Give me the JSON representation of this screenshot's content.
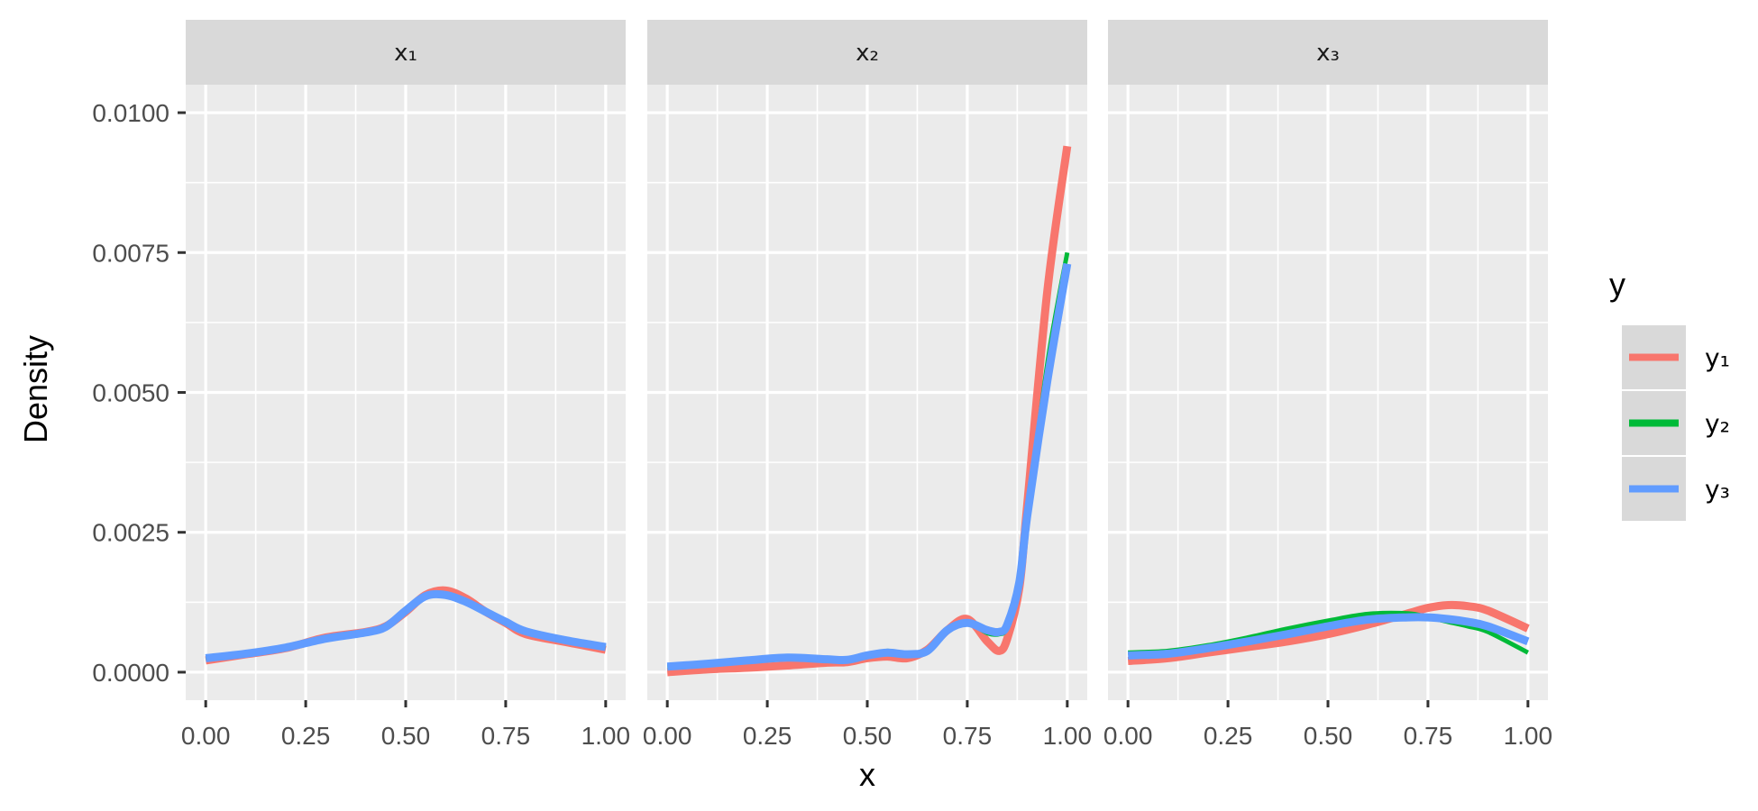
{
  "chart_data": {
    "type": "line",
    "xlabel": "x",
    "ylabel": "Density",
    "xlim": [
      0,
      1
    ],
    "ylim": [
      -0.0005,
      0.0105
    ],
    "x_ticks": [
      0,
      0.25,
      0.5,
      0.75,
      1
    ],
    "x_tick_labels": [
      "0.00",
      "0.25",
      "0.50",
      "0.75",
      "1.00"
    ],
    "y_ticks": [
      0,
      0.0025,
      0.005,
      0.0075,
      0.01
    ],
    "y_tick_labels": [
      "0.0000",
      "0.0025",
      "0.0050",
      "0.0075",
      "0.0100"
    ],
    "grid": true,
    "legend": {
      "title": "y",
      "position": "right"
    },
    "colors": {
      "y1": "#F8766D",
      "y2": "#00BA38",
      "y3": "#619CFF",
      "panel": "#EBEBEB",
      "strip": "#D9D9D9",
      "grid": "#FFFFFF"
    },
    "series_names": [
      "y₁",
      "y₂",
      "y₃"
    ],
    "panels": [
      {
        "strip": "x₁",
        "x": [
          0,
          0.1,
          0.2,
          0.3,
          0.4,
          0.45,
          0.5,
          0.55,
          0.6,
          0.65,
          0.7,
          0.75,
          0.8,
          0.9,
          1.0
        ],
        "series": [
          {
            "name": "y₁",
            "values": [
              0.00021,
              0.00032,
              0.00043,
              0.00062,
              0.00072,
              0.00082,
              0.00108,
              0.00138,
              0.00146,
              0.00132,
              0.00108,
              0.00088,
              0.00068,
              0.00054,
              0.0004
            ]
          },
          {
            "name": "y₂",
            "values": [
              0.00025,
              0.00033,
              0.00044,
              0.0006,
              0.00071,
              0.0008,
              0.00108,
              0.00135,
              0.00138,
              0.00125,
              0.00108,
              0.0009,
              0.00073,
              0.00057,
              0.00045
            ]
          },
          {
            "name": "y₃",
            "values": [
              0.00025,
              0.00033,
              0.00044,
              0.0006,
              0.00071,
              0.00081,
              0.0011,
              0.00136,
              0.00138,
              0.00126,
              0.00108,
              0.0009,
              0.00073,
              0.00057,
              0.00045
            ]
          }
        ]
      },
      {
        "strip": "x₂",
        "x": [
          0,
          0.1,
          0.2,
          0.3,
          0.4,
          0.45,
          0.5,
          0.55,
          0.6,
          0.65,
          0.7,
          0.75,
          0.8,
          0.83,
          0.85,
          0.88,
          0.9,
          0.95,
          1.0
        ],
        "series": [
          {
            "name": "y₁",
            "values": [
              0.0,
              5e-05,
              8e-05,
              0.00012,
              0.00017,
              0.00018,
              0.00025,
              0.00028,
              0.00025,
              0.0004,
              0.00075,
              0.00095,
              0.00055,
              0.00038,
              0.0006,
              0.0015,
              0.003,
              0.0068,
              0.0094
            ]
          },
          {
            "name": "y₂",
            "values": [
              0.0001,
              0.00015,
              0.0002,
              0.00025,
              0.00022,
              0.00023,
              0.0003,
              0.00038,
              0.00033,
              0.00035,
              0.00072,
              0.00088,
              0.0007,
              0.00068,
              0.0008,
              0.0015,
              0.0027,
              0.0055,
              0.0075
            ]
          },
          {
            "name": "y₃",
            "values": [
              0.0001,
              0.00015,
              0.00021,
              0.00026,
              0.00023,
              0.00022,
              0.0003,
              0.00035,
              0.00032,
              0.00038,
              0.00075,
              0.00088,
              0.00075,
              0.00072,
              0.00085,
              0.0016,
              0.0028,
              0.0052,
              0.0073
            ]
          }
        ]
      },
      {
        "strip": "x₃",
        "x": [
          0,
          0.1,
          0.2,
          0.3,
          0.4,
          0.5,
          0.6,
          0.7,
          0.75,
          0.8,
          0.85,
          0.9,
          1.0
        ],
        "series": [
          {
            "name": "y₁",
            "values": [
              0.0002,
              0.00025,
              0.00035,
              0.00045,
              0.00055,
              0.00068,
              0.00085,
              0.00105,
              0.00115,
              0.0012,
              0.00118,
              0.0011,
              0.00078
            ]
          },
          {
            "name": "y₂",
            "values": [
              0.00035,
              0.00038,
              0.00048,
              0.00062,
              0.00078,
              0.00092,
              0.00104,
              0.00105,
              0.00098,
              0.0009,
              0.00082,
              0.00072,
              0.00035
            ]
          },
          {
            "name": "y₃",
            "values": [
              0.0003,
              0.00033,
              0.00043,
              0.00055,
              0.00068,
              0.00082,
              0.00094,
              0.00098,
              0.00098,
              0.00095,
              0.0009,
              0.00082,
              0.00055
            ]
          }
        ]
      }
    ]
  }
}
